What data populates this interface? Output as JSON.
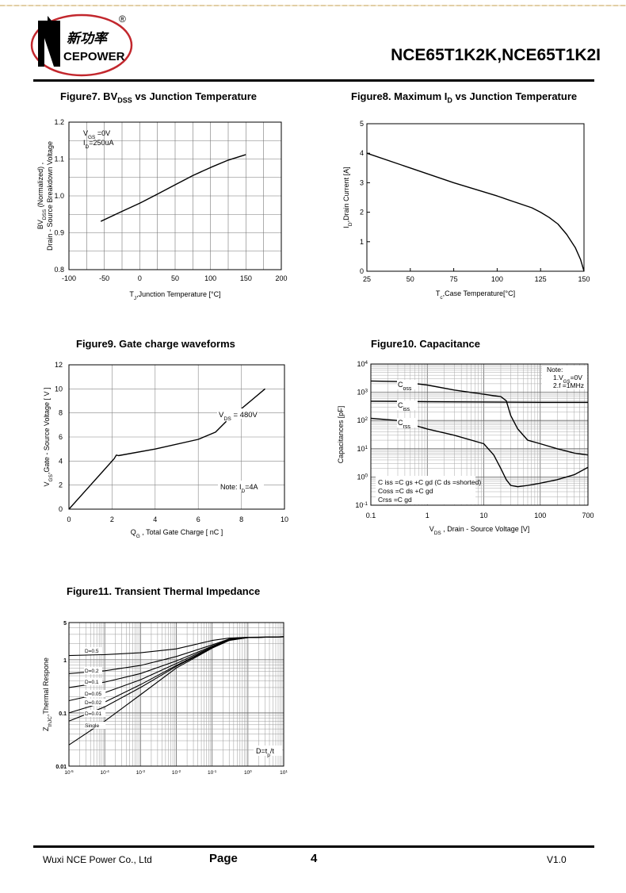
{
  "header": {
    "brand_cn": "新功率",
    "brand_en": "CEPOWER",
    "registered": "®",
    "title": "NCE65T1K2K,NCE65T1K2I"
  },
  "figures": {
    "fig7": {
      "title_pre": "Figure7. BV",
      "title_sub": "DSS",
      "title_post": " vs Junction Temperature"
    },
    "fig8": {
      "title_pre": "Figure8. Maximum I",
      "title_sub": "D",
      "title_post": " vs Junction Temperature"
    },
    "fig9": {
      "title": "Figure9. Gate charge waveforms"
    },
    "fig10": {
      "title": "Figure10. Capacitance"
    },
    "fig11": {
      "title": "Figure11. Transient Thermal Impedance"
    }
  },
  "chart_data": [
    {
      "id": "fig7",
      "type": "line",
      "xlabel": "T_J,Junction Temperature [°C]",
      "ylabel_1": "BV_DSS (Normalized) ,",
      "ylabel_2": "Drain - Source Breakdown Voltage",
      "xlim": [
        -100,
        200
      ],
      "ylim": [
        0.8,
        1.2
      ],
      "x_ticks": [
        -100,
        -50,
        0,
        50,
        100,
        150,
        200
      ],
      "y_ticks": [
        0.8,
        0.9,
        1.0,
        1.1,
        1.2
      ],
      "annotations": [
        "V_GS =0V",
        "I_D=250uA"
      ],
      "series": [
        {
          "x": [
            -55,
            -25,
            0,
            25,
            50,
            75,
            100,
            125,
            150
          ],
          "y": [
            0.931,
            0.958,
            0.98,
            1.005,
            1.03,
            1.055,
            1.077,
            1.097,
            1.112
          ]
        }
      ],
      "grid": true
    },
    {
      "id": "fig8",
      "type": "line",
      "xlabel": "T_c,Case Temperature[°C]",
      "ylabel": "I_D,Drain Current [A]",
      "xlim": [
        25,
        150
      ],
      "ylim": [
        0,
        5
      ],
      "x_ticks": [
        25,
        50,
        75,
        100,
        125,
        150
      ],
      "y_ticks": [
        0,
        1,
        2,
        3,
        4,
        5
      ],
      "series": [
        {
          "x": [
            25,
            50,
            75,
            100,
            110,
            120,
            125,
            130,
            135,
            140,
            145,
            148,
            150
          ],
          "y": [
            4.0,
            3.5,
            3.0,
            2.55,
            2.35,
            2.15,
            2.0,
            1.82,
            1.6,
            1.25,
            0.8,
            0.4,
            0.0
          ]
        }
      ],
      "grid": false
    },
    {
      "id": "fig9",
      "type": "line",
      "xlabel": "Q_G , Total Gate Charge [ nC ]",
      "ylabel": "V_GS,Gate - Source Voltage [ V ]",
      "xlim": [
        0,
        10
      ],
      "ylim": [
        0,
        12
      ],
      "x_ticks": [
        0,
        2,
        4,
        6,
        8,
        10
      ],
      "y_ticks": [
        0,
        2,
        4,
        6,
        8,
        10,
        12
      ],
      "annotations": [
        "V_DS = 480V",
        "Note: I_D=4A"
      ],
      "series": [
        {
          "x": [
            0,
            1,
            2.1,
            2.2,
            2.3,
            4,
            6,
            6.8,
            7.3
          ],
          "y": [
            0,
            2.0,
            4.2,
            4.5,
            4.45,
            5.0,
            5.8,
            6.4,
            7.3
          ]
        },
        {
          "x": [
            7.9,
            8.5,
            9.1
          ],
          "y": [
            8.2,
            9.1,
            10.0
          ]
        }
      ],
      "grid": true
    },
    {
      "id": "fig10",
      "type": "line",
      "xlabel": "V_DS , Drain - Source Voltage [V]",
      "ylabel": "Capacitances [pF]",
      "x_scale": "log",
      "y_scale": "log",
      "xlim": [
        0.1,
        700
      ],
      "ylim": [
        0.1,
        10000
      ],
      "x_ticks": [
        "0.1",
        "1",
        "10",
        "100",
        "700"
      ],
      "y_ticks": [
        "10^-1",
        "10^0",
        "10^1",
        "10^2",
        "10^3",
        "10^4"
      ],
      "note": [
        "Note:",
        "1.V_GS=0V",
        "2.f =1MHz"
      ],
      "formulas": [
        "C iss =C gs +C gd  (C ds =shorted)",
        "Coss =C ds +C gd",
        "Crss =C gd"
      ],
      "series": [
        {
          "name": "C oss",
          "x": [
            0.1,
            0.3,
            1,
            3,
            10,
            15,
            20,
            25,
            30,
            40,
            60,
            100,
            200,
            400,
            700
          ],
          "y": [
            2500,
            2400,
            1800,
            1200,
            850,
            750,
            700,
            500,
            150,
            50,
            20,
            15,
            10,
            7,
            6
          ]
        },
        {
          "name": "C iss",
          "x": [
            0.1,
            0.5,
            1,
            10,
            100,
            700
          ],
          "y": [
            480,
            470,
            460,
            450,
            440,
            440
          ]
        },
        {
          "name": "C rss",
          "x": [
            0.1,
            0.3,
            1,
            3,
            10,
            15,
            20,
            25,
            30,
            40,
            60,
            100,
            200,
            400,
            700
          ],
          "y": [
            120,
            100,
            50,
            30,
            15,
            6,
            2,
            0.8,
            0.5,
            0.45,
            0.5,
            0.6,
            0.8,
            1.2,
            2.2
          ]
        }
      ],
      "grid": true
    },
    {
      "id": "fig11",
      "type": "line",
      "xlabel": "",
      "ylabel": "Z_thJC,Thermal Respone",
      "x_scale": "log",
      "y_scale": "log",
      "xlim": [
        1e-05,
        10
      ],
      "ylim": [
        0.01,
        5
      ],
      "x_ticks": [
        "10^-5",
        "10^-4",
        "10^-3",
        "10^-2",
        "10^-1",
        "10^0",
        "10^1"
      ],
      "y_ticks": [
        "0.01",
        "0.1",
        "1",
        "5"
      ],
      "annotations": [
        "D=t_p/t"
      ],
      "series": [
        {
          "name": "D=0.5",
          "x": [
            1e-05,
            0.0001,
            0.001,
            0.01,
            0.03,
            0.1,
            0.3,
            1,
            10
          ],
          "y": [
            1.2,
            1.25,
            1.35,
            1.6,
            1.9,
            2.3,
            2.55,
            2.65,
            2.7
          ]
        },
        {
          "name": "D=0.2",
          "x": [
            1e-05,
            0.0001,
            0.001,
            0.01,
            0.1,
            0.3,
            1,
            10
          ],
          "y": [
            0.55,
            0.62,
            0.78,
            1.15,
            1.9,
            2.45,
            2.62,
            2.7
          ]
        },
        {
          "name": "D=0.1",
          "x": [
            1e-05,
            0.0001,
            0.001,
            0.01,
            0.1,
            0.3,
            1,
            10
          ],
          "y": [
            0.3,
            0.38,
            0.55,
            0.95,
            1.8,
            2.4,
            2.62,
            2.7
          ]
        },
        {
          "name": "D=0.05",
          "x": [
            1e-05,
            0.0001,
            0.001,
            0.01,
            0.1,
            0.3,
            1,
            10
          ],
          "y": [
            0.17,
            0.24,
            0.42,
            0.85,
            1.75,
            2.38,
            2.6,
            2.7
          ]
        },
        {
          "name": "D=0.02",
          "x": [
            1e-05,
            0.0001,
            0.001,
            0.01,
            0.1,
            0.3,
            1,
            10
          ],
          "y": [
            0.1,
            0.16,
            0.34,
            0.78,
            1.7,
            2.35,
            2.6,
            2.7
          ]
        },
        {
          "name": "D=0.01",
          "x": [
            1e-05,
            0.0001,
            0.001,
            0.01,
            0.1,
            0.3,
            1,
            10
          ],
          "y": [
            0.07,
            0.13,
            0.3,
            0.75,
            1.68,
            2.33,
            2.6,
            2.7
          ]
        },
        {
          "name": "Single",
          "x": [
            1e-05,
            0.0001,
            0.001,
            0.01,
            0.1,
            0.3,
            1,
            10
          ],
          "y": [
            0.025,
            0.07,
            0.22,
            0.7,
            1.65,
            2.3,
            2.6,
            2.7
          ]
        }
      ],
      "grid": true
    }
  ],
  "footer": {
    "company": "Wuxi NCE Power Co., Ltd",
    "page_label": "Page",
    "page_number": "4",
    "version": "V1.0"
  }
}
